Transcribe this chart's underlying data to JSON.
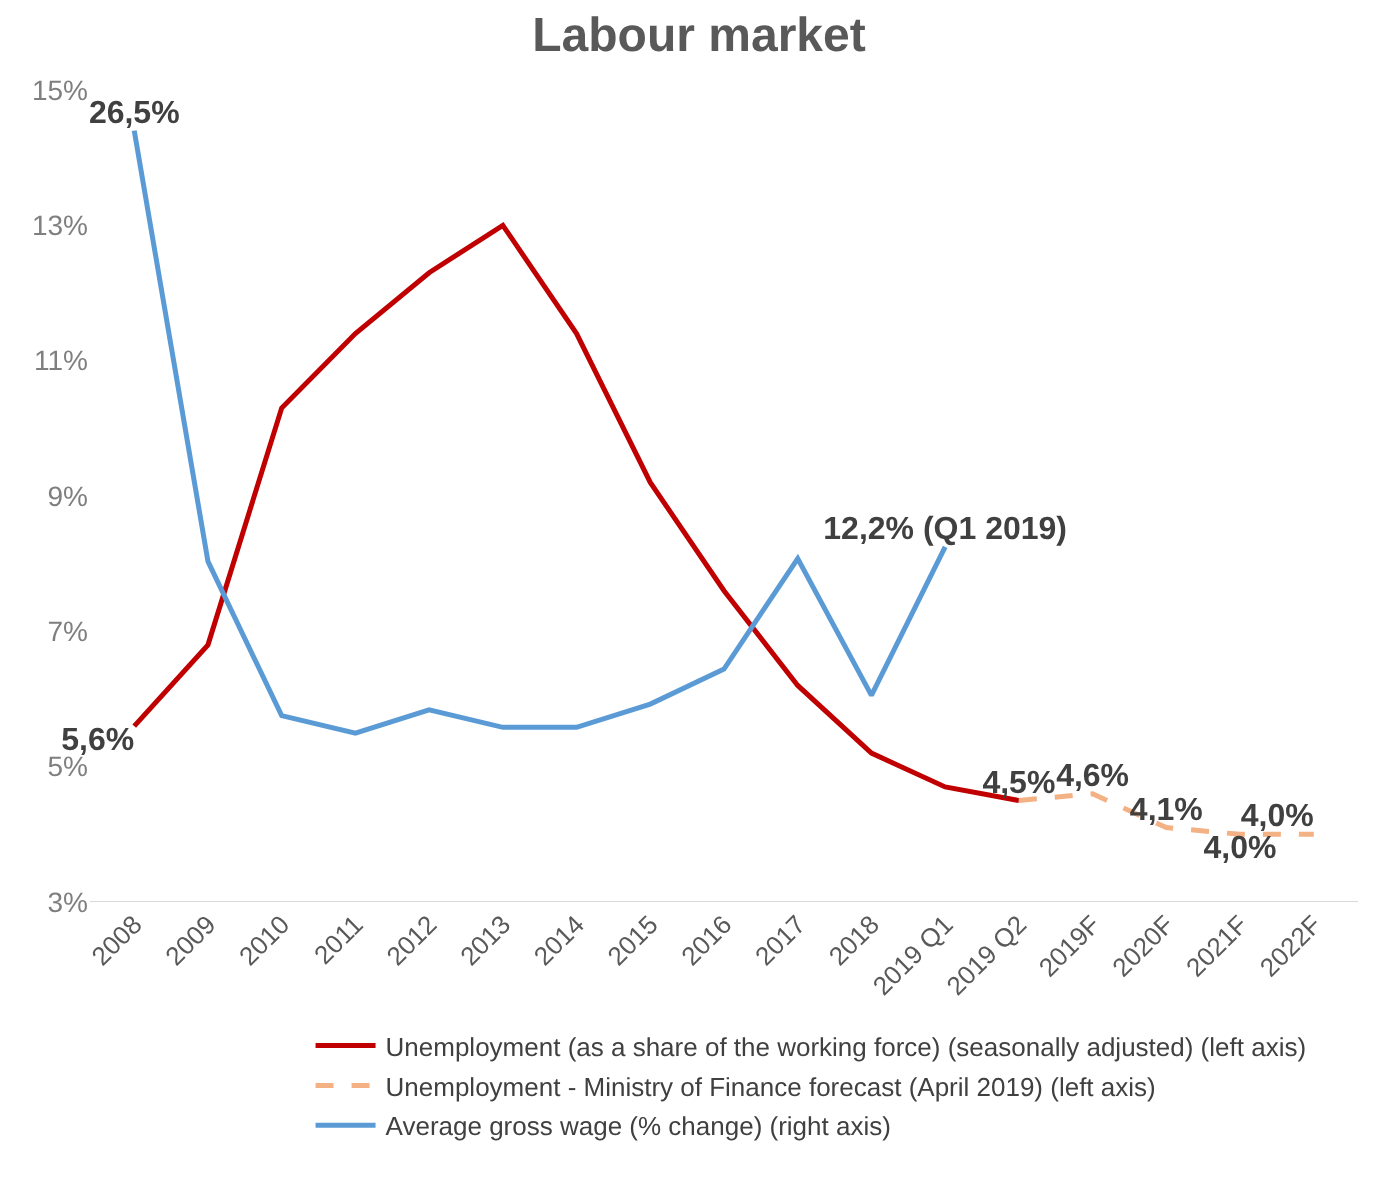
{
  "chart_data": {
    "type": "line",
    "title": "Labour market",
    "categories": [
      "2008",
      "2009",
      "2010",
      "2011",
      "2012",
      "2013",
      "2014",
      "2015",
      "2016",
      "2017",
      "2018",
      "2019 Q1",
      "2019 Q2",
      "2019F",
      "2020F",
      "2021F",
      "2022F"
    ],
    "series": [
      {
        "name": "Unemployment (as a share of the working force) (seasonally adjusted) (left axis)",
        "color": "#c00000",
        "line_style": "solid",
        "values": [
          5.6,
          6.8,
          10.3,
          11.4,
          12.3,
          13.0,
          11.4,
          9.2,
          7.6,
          6.2,
          5.2,
          4.7,
          4.5,
          null,
          null,
          null,
          null
        ],
        "value_labels": [
          "5,6%",
          null,
          null,
          null,
          null,
          null,
          null,
          null,
          null,
          null,
          null,
          null,
          "4,5%",
          null,
          null,
          null,
          null
        ]
      },
      {
        "name": "Unemployment - Ministry of Finance forecast (April 2019) (left axis)",
        "color": "#f4b183",
        "line_style": "dashed",
        "values": [
          null,
          null,
          null,
          null,
          null,
          null,
          null,
          null,
          null,
          null,
          null,
          null,
          4.5,
          4.6,
          4.1,
          4.0,
          4.0
        ],
        "value_labels": [
          null,
          null,
          null,
          null,
          null,
          null,
          null,
          null,
          null,
          null,
          null,
          null,
          null,
          "4,6%",
          "4,1%",
          "4,0%",
          "4,0%"
        ]
      },
      {
        "name": "Average gross wage (% change) (right axis)",
        "color": "#5b9bd5",
        "line_style": "solid",
        "axis": "y2",
        "values": [
          26.5,
          11.7,
          6.4,
          5.8,
          6.6,
          6.0,
          6.0,
          6.8,
          8.0,
          11.8,
          7.1,
          12.2,
          null,
          null,
          null,
          null,
          null
        ],
        "value_labels": [
          "26,5%",
          null,
          null,
          null,
          null,
          null,
          null,
          null,
          null,
          null,
          null,
          "12,2% (Q1 2019)",
          null,
          null,
          null,
          null,
          null
        ]
      }
    ],
    "ylim": [
      3,
      15
    ],
    "yticks": [
      {
        "value": 3,
        "label": "3%"
      },
      {
        "value": 5,
        "label": "5%"
      },
      {
        "value": 7,
        "label": "7%"
      },
      {
        "value": 9,
        "label": "9%"
      },
      {
        "value": 11,
        "label": "11%"
      },
      {
        "value": 13,
        "label": "13%"
      },
      {
        "value": 15,
        "label": "15%"
      }
    ],
    "legend": "bottom",
    "marker": "none"
  }
}
